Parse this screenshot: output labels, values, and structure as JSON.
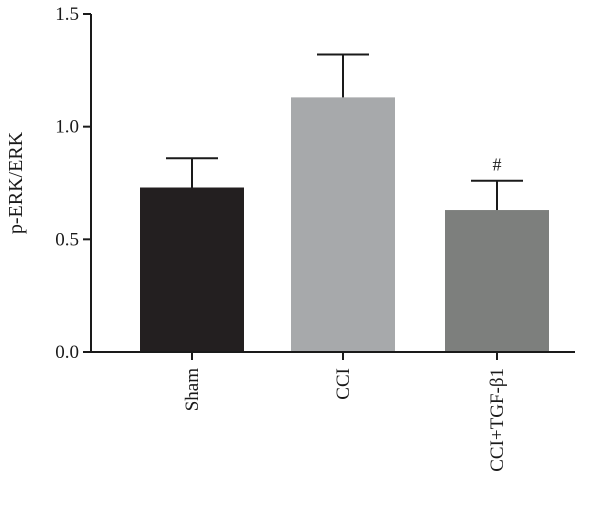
{
  "chart_data": {
    "type": "bar",
    "title": "",
    "xlabel": "",
    "ylabel": "p-ERK/ERK",
    "ylim": [
      0,
      1.5
    ],
    "yticks": [
      "0.0",
      "0.5",
      "1.0",
      "1.5"
    ],
    "grid": false,
    "categories": [
      "Sham",
      "CCI",
      "CCI+TGF-β1"
    ],
    "values": [
      0.73,
      1.13,
      0.63
    ],
    "errors": [
      0.13,
      0.19,
      0.13
    ],
    "colors": [
      "#231f20",
      "#a7a9ab",
      "#7d7f7d"
    ],
    "annotations": [
      "",
      "",
      "#"
    ]
  }
}
